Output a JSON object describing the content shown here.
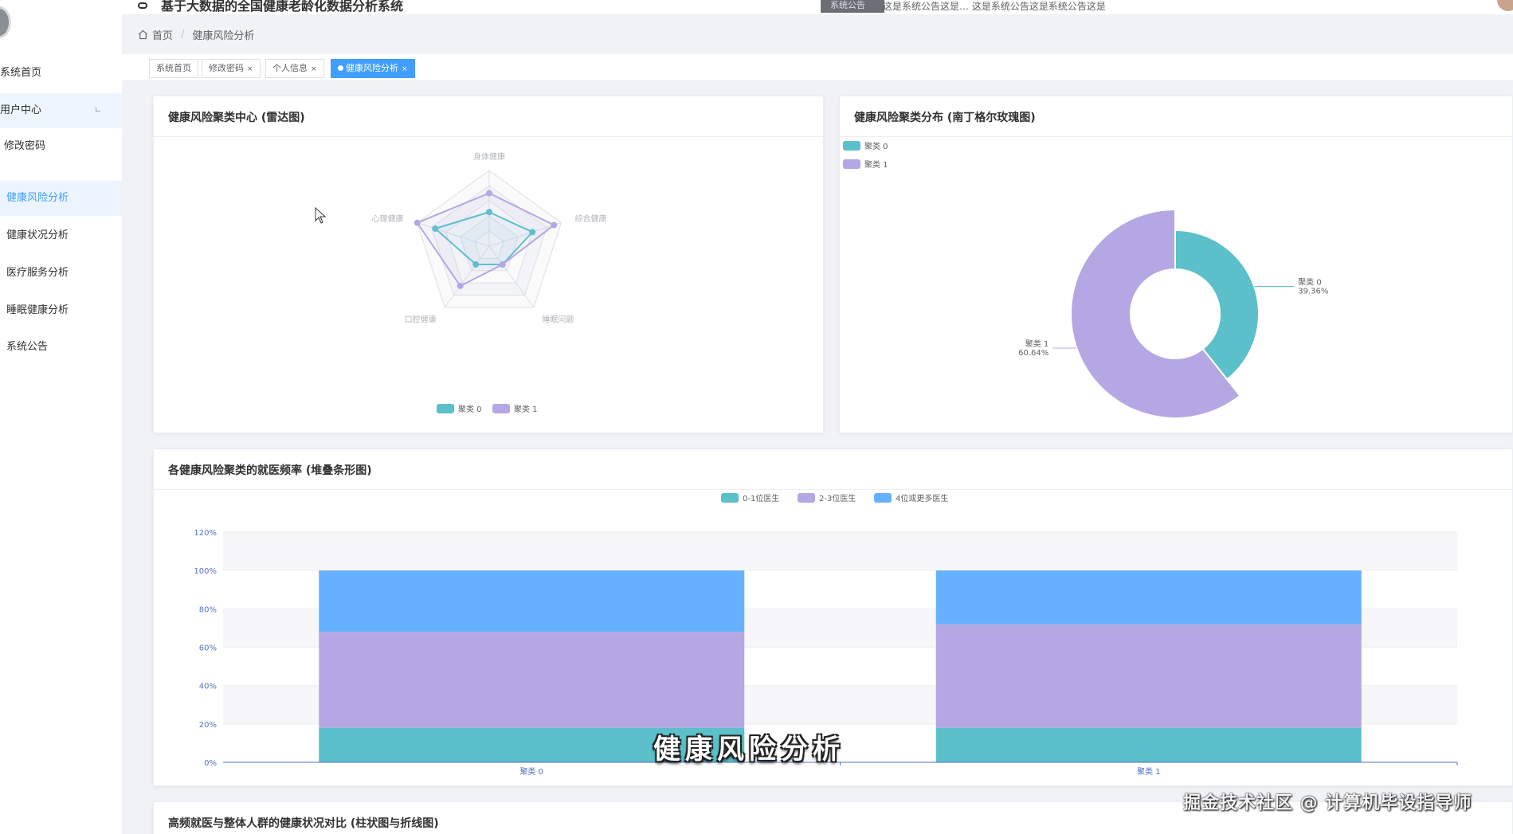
{
  "app": {
    "title": "基于大数据的全国健康老龄化数据分析系统"
  },
  "notice": {
    "label": "系统公告",
    "text": "这是系统公告这是…  这是系统公告这是系统公告这是"
  },
  "sidebar": {
    "items": [
      {
        "label": "系统首页"
      },
      {
        "label": "用户中心"
      },
      {
        "label": "修改密码"
      },
      {
        "label": "健康风险分析"
      },
      {
        "label": "健康状况分析"
      },
      {
        "label": "医疗服务分析"
      },
      {
        "label": "睡眠健康分析"
      },
      {
        "label": "系统公告"
      }
    ],
    "expand_arrow": "∟"
  },
  "breadcrumb": {
    "home": "首页",
    "separator": "/",
    "current": "健康风险分析"
  },
  "tags": [
    {
      "label": "系统首页"
    },
    {
      "label": "修改密码",
      "close": "×"
    },
    {
      "label": "个人信息",
      "close": "×"
    },
    {
      "label": "健康风险分析",
      "close": "×"
    }
  ],
  "colors": {
    "accent": "#409eff",
    "cluster0": "#5bc0c9",
    "cluster1": "#b4a7e3",
    "blue": "#66b1ff"
  },
  "chart_data": [
    {
      "type": "radar",
      "title": "健康风险聚类中心 (雷达图)",
      "indicators": [
        "身体健康",
        "综合健康",
        "睡眠问题",
        "口腔健康",
        "心理健康"
      ],
      "series": [
        {
          "name": "聚类 0",
          "values": [
            0.45,
            0.6,
            0.3,
            0.3,
            0.75
          ]
        },
        {
          "name": "聚类 1",
          "values": [
            0.7,
            0.9,
            0.3,
            0.65,
            1.0
          ]
        }
      ],
      "legend": [
        "聚类 0",
        "聚类 1"
      ]
    },
    {
      "type": "pie",
      "title": "健康风险聚类分布 (南丁格尔玫瑰图)",
      "categories": [
        "聚类 0",
        "聚类 1"
      ],
      "values": [
        39.36,
        60.64
      ],
      "labels": [
        {
          "name": "聚类 0",
          "percent": "39.36%"
        },
        {
          "name": "聚类 1",
          "percent": "60.64%"
        }
      ],
      "legend": [
        "聚类 0",
        "聚类 1"
      ]
    },
    {
      "type": "bar",
      "stacked": true,
      "title": "各健康风险聚类的就医频率 (堆叠条形图)",
      "categories": [
        "聚类 0",
        "聚类 1"
      ],
      "series": [
        {
          "name": "0-1位医生",
          "values": [
            18,
            18
          ]
        },
        {
          "name": "2-3位医生",
          "values": [
            50,
            54
          ]
        },
        {
          "name": "4位或更多医生",
          "values": [
            32,
            28
          ]
        }
      ],
      "ylim": [
        0,
        120
      ],
      "yticks": [
        "0%",
        "20%",
        "40%",
        "60%",
        "80%",
        "100%",
        "120%"
      ]
    }
  ],
  "bottom_card": {
    "title": "高频就医与整体人群的健康状况对比 (柱状图与折线图)"
  },
  "overlay": {
    "subtitle": "健康风险分析",
    "watermark": "掘金技术社区 @ 计算机毕设指导师"
  }
}
